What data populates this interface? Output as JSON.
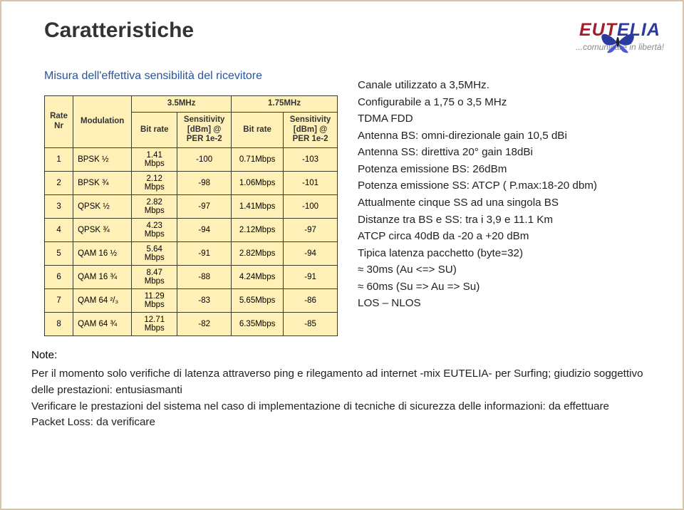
{
  "title": "Caratteristiche",
  "subtitle": "Misura dell'effettiva sensibilità del ricevitore",
  "logo": {
    "part1": "EUT",
    "part2": "ELIA",
    "tagline": "...comunicare in libertà!"
  },
  "table": {
    "freq1": "3.5MHz",
    "freq2": "1.75MHz",
    "h_rate": "Rate\nNr",
    "h_mod": "Modulation",
    "h_br": "Bit rate",
    "h_sens": "Sensitivity\n[dBm] @\nPER 1e-2",
    "rows": [
      {
        "nr": "1",
        "mod": "BPSK ½",
        "br1": "1.41 Mbps",
        "s1": "-100",
        "br2": "0.71Mbps",
        "s2": "-103"
      },
      {
        "nr": "2",
        "mod": "BPSK ¾",
        "br1": "2.12 Mbps",
        "s1": "-98",
        "br2": "1.06Mbps",
        "s2": "-101"
      },
      {
        "nr": "3",
        "mod": "QPSK ½",
        "br1": "2.82 Mbps",
        "s1": "-97",
        "br2": "1.41Mbps",
        "s2": "-100"
      },
      {
        "nr": "4",
        "mod": "QPSK ¾",
        "br1": "4.23 Mbps",
        "s1": "-94",
        "br2": "2.12Mbps",
        "s2": "-97"
      },
      {
        "nr": "5",
        "mod": "QAM 16 ½",
        "br1": "5.64 Mbps",
        "s1": "-91",
        "br2": "2.82Mbps",
        "s2": "-94"
      },
      {
        "nr": "6",
        "mod": "QAM 16 ¾",
        "br1": "8.47 Mbps",
        "s1": "-88",
        "br2": "4.24Mbps",
        "s2": "-91"
      },
      {
        "nr": "7",
        "mod": "QAM 64 ²/₃",
        "br1": "11.29 Mbps",
        "s1": "-83",
        "br2": "5.65Mbps",
        "s2": "-86"
      },
      {
        "nr": "8",
        "mod": "QAM 64 ¾",
        "br1": "12.71 Mbps",
        "s1": "-82",
        "br2": "6.35Mbps",
        "s2": "-85"
      }
    ]
  },
  "bullets": [
    "Canale utilizzato a 3,5MHz.",
    "Configurabile a 1,75 o 3,5 MHz",
    "TDMA FDD",
    "Antenna BS: omni-direzionale gain 10,5 dBi",
    "Antenna SS: direttiva 20° gain 18dBi",
    "Potenza emissione BS: 26dBm",
    "Potenza emissione SS: ATCP ( P.max:18-20 dbm)",
    "Attualmente cinque SS ad una singola BS",
    "Distanze tra BS e SS: tra i 3,9 e 11.1 Km",
    "ATCP circa 40dB da -20 a +20 dBm",
    "Tipica latenza pacchetto (byte=32)",
    "≈ 30ms  (Au <=> SU)",
    "≈  60ms (Su => Au => Su)",
    "LOS – NLOS"
  ],
  "note_title": "Note:",
  "note_lines": [
    "Per il momento solo verifiche di latenza attraverso ping e rilegamento ad internet -mix EUTELIA- per Surfing; giudizio soggettivo delle prestazioni: entusiasmanti",
    "Verificare le prestazioni del sistema nel caso di implementazione di tecniche di sicurezza delle informazioni: da effettuare",
    "Packet Loss: da verificare"
  ],
  "colors": {
    "table_bg": "#fff0b8",
    "border": "#3a3a2a",
    "subtitle": "#2a5599"
  }
}
